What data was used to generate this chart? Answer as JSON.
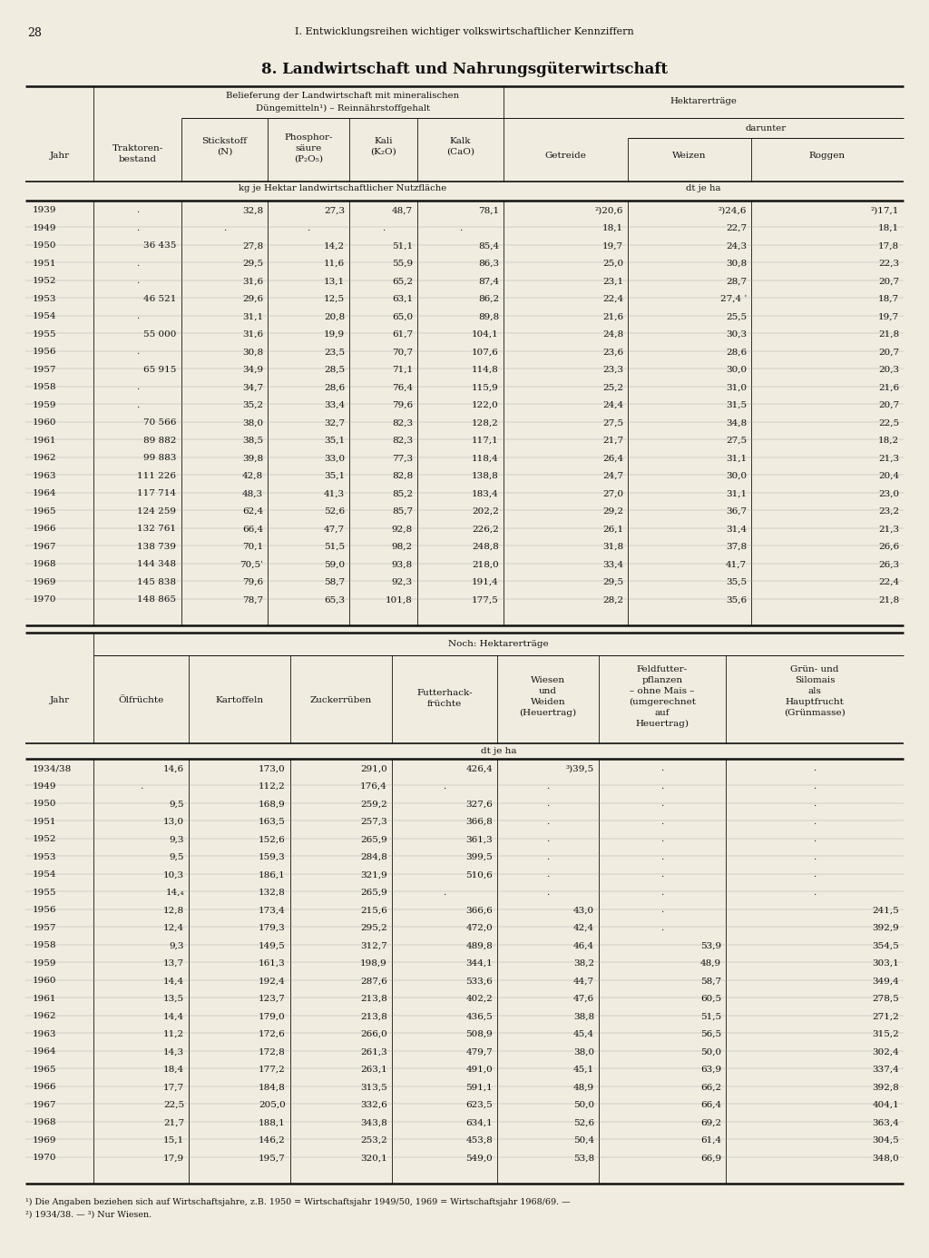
{
  "page_number": "28",
  "header_line": "I. Entwicklungsreihen wichtiger volkswirtschaftlicher Kennziffern",
  "title": "8. Landwirtschaft und Nahrungsgüterwirtschaft",
  "bg_color": "#f0ece0",
  "text_color": "#1a1a1a",
  "table1_rows": [
    [
      "1939",
      ".",
      "32,8",
      "27,3",
      "48,7",
      "78,1",
      "²)20,6",
      "²)24,6",
      "²)17,1"
    ],
    [
      "1949",
      ".",
      ".",
      ".",
      ".",
      ".",
      "18,1",
      "22,7",
      "18,1"
    ],
    [
      "1950",
      "36 435",
      "27,8",
      "14,2",
      "51,1",
      "85,4",
      "19,7",
      "24,3",
      "17,8"
    ],
    [
      "1951",
      ".",
      "29,5",
      "11,6",
      "55,9",
      "86,3",
      "25,0",
      "30,8",
      "22,3"
    ],
    [
      "1952",
      ".",
      "31,6",
      "13,1",
      "65,2",
      "87,4",
      "23,1",
      "28,7",
      "20,7"
    ],
    [
      "1953",
      "46 521",
      "29,6",
      "12,5",
      "63,1",
      "86,2",
      "22,4",
      "27,4 ˈ",
      "18,7"
    ],
    [
      "1954",
      ".",
      "31,1",
      "20,8",
      "65,0",
      "89,8",
      "21,6",
      "25,5",
      "19,7"
    ],
    [
      "1955",
      "55 000",
      "31,6",
      "19,9",
      "61,7",
      "104,1",
      "24,8",
      "30,3",
      "21,8"
    ],
    [
      "1956",
      ".",
      "30,8",
      "23,5",
      "70,7",
      "107,6",
      "23,6",
      "28,6",
      "20,7"
    ],
    [
      "1957",
      "65 915",
      "34,9",
      "28,5",
      "71,1",
      "114,8",
      "23,3",
      "30,0",
      "20,3"
    ],
    [
      "1958",
      ".",
      "34,7",
      "28,6",
      "76,4",
      "115,9",
      "25,2",
      "31,0",
      "21,6"
    ],
    [
      "1959",
      ".",
      "35,2",
      "33,4",
      "79,6",
      "122,0",
      "24,4",
      "31,5",
      "20,7"
    ],
    [
      "1960",
      "70 566",
      "38,0",
      "32,7",
      "82,3",
      "128,2",
      "27,5",
      "34,8",
      "22,5"
    ],
    [
      "1961",
      "89 882",
      "38,5",
      "35,1",
      "82,3",
      "117,1",
      "21,7",
      "27,5",
      "18,2"
    ],
    [
      "1962",
      "99 883",
      "39,8",
      "33,0",
      "77,3",
      "118,4",
      "26,4",
      "31,1",
      "21,3"
    ],
    [
      "1963",
      "111 226",
      "42,8",
      "35,1",
      "82,8",
      "138,8",
      "24,7",
      "30,0",
      "20,4"
    ],
    [
      "1964",
      "117 714",
      "48,3",
      "41,3",
      "85,2",
      "183,4",
      "27,0",
      "31,1",
      "23,0"
    ],
    [
      "1965",
      "124 259",
      "62,4",
      "52,6",
      "85,7",
      "202,2",
      "29,2",
      "36,7",
      "23,2"
    ],
    [
      "1966",
      "132 761",
      "66,4",
      "47,7",
      "92,8",
      "226,2",
      "26,1",
      "31,4",
      "21,3"
    ],
    [
      "1967",
      "138 739",
      "70,1",
      "51,5",
      "98,2",
      "248,8",
      "31,8",
      "37,8",
      "26,6"
    ],
    [
      "1968",
      "144 348",
      "70,5ˈ",
      "59,0",
      "93,8",
      "218,0",
      "33,4",
      "41,7",
      "26,3"
    ],
    [
      "1969",
      "145 838",
      "79,6",
      "58,7",
      "92,3",
      "191,4",
      "29,5",
      "35,5",
      "22,4"
    ],
    [
      "1970",
      "148 865",
      "78,7",
      "65,3",
      "101,8",
      "177,5",
      "28,2",
      "35,6",
      "21,8"
    ]
  ],
  "table2_rows": [
    [
      "1934/38",
      "14,6",
      "173,0",
      "291,0",
      "426,4",
      "³)39,5",
      ".",
      "."
    ],
    [
      "1949",
      ".",
      "112,2",
      "176,4",
      ".",
      ".",
      ".",
      "."
    ],
    [
      "1950",
      "9,5",
      "168,9",
      "259,2",
      "327,6",
      ".",
      ".",
      "."
    ],
    [
      "1951",
      "13,0",
      "163,5",
      "257,3",
      "366,8",
      ".",
      ".",
      "."
    ],
    [
      "1952",
      "9,3",
      "152,6",
      "265,9",
      "361,3",
      ".",
      ".",
      "."
    ],
    [
      "1953",
      "9,5",
      "159,3",
      "284,8",
      "399,5",
      ".",
      ".",
      "."
    ],
    [
      "1954",
      "10,3",
      "186,1",
      "321,9",
      "510,6",
      ".",
      ".",
      "."
    ],
    [
      "1955",
      "14,₄",
      "132,8",
      "265,9",
      ".",
      ".",
      ".",
      "."
    ],
    [
      "1956",
      "12,8",
      "173,4",
      "215,6",
      "366,6",
      "43,0",
      ".",
      "241,5"
    ],
    [
      "1957",
      "12,4",
      "179,3",
      "295,2",
      "472,0",
      "42,4",
      ".",
      "392,9"
    ],
    [
      "1958",
      "9,3",
      "149,5",
      "312,7",
      "489,8",
      "46,4",
      "53,9",
      "354,5"
    ],
    [
      "1959",
      "13,7",
      "161,3",
      "198,9",
      "344,1",
      "38,2",
      "48,9",
      "303,1"
    ],
    [
      "1960",
      "14,4",
      "192,4",
      "287,6",
      "533,6",
      "44,7",
      "58,7",
      "349,4"
    ],
    [
      "1961",
      "13,5",
      "123,7",
      "213,8",
      "402,2",
      "47,6",
      "60,5",
      "278,5"
    ],
    [
      "1962",
      "14,4",
      "179,0",
      "213,8",
      "436,5",
      "38,8",
      "51,5",
      "271,2"
    ],
    [
      "1963",
      "11,2",
      "172,6",
      "266,0",
      "508,9",
      "45,4",
      "56,5",
      "315,2"
    ],
    [
      "1964",
      "14,3",
      "172,8",
      "261,3",
      "479,7",
      "38,0",
      "50,0",
      "302,4"
    ],
    [
      "1965",
      "18,4",
      "177,2",
      "263,1",
      "491,0",
      "45,1",
      "63,9",
      "337,4"
    ],
    [
      "1966",
      "17,7",
      "184,8",
      "313,5",
      "591,1",
      "48,9",
      "66,2",
      "392,8"
    ],
    [
      "1967",
      "22,5",
      "205,0",
      "332,6",
      "623,5",
      "50,0",
      "66,4",
      "404,1"
    ],
    [
      "1968",
      "21,7",
      "188,1",
      "343,8",
      "634,1",
      "52,6",
      "69,2",
      "363,4"
    ],
    [
      "1969",
      "15,1",
      "146,2",
      "253,2",
      "453,8",
      "50,4",
      "61,4",
      "304,5"
    ],
    [
      "1970",
      "17,9",
      "195,7",
      "320,1",
      "549,0",
      "53,8",
      "66,9",
      "348,0"
    ]
  ],
  "footnote1": "¹) Die Angaben beziehen sich auf Wirtschaftsjahre, z.B. 1950 = Wirtschaftsjahr 1949/50, 1969 = Wirtschaftsjahr 1968/69. —",
  "footnote2": "²) 1934/38. — ³) Nur Wiesen."
}
